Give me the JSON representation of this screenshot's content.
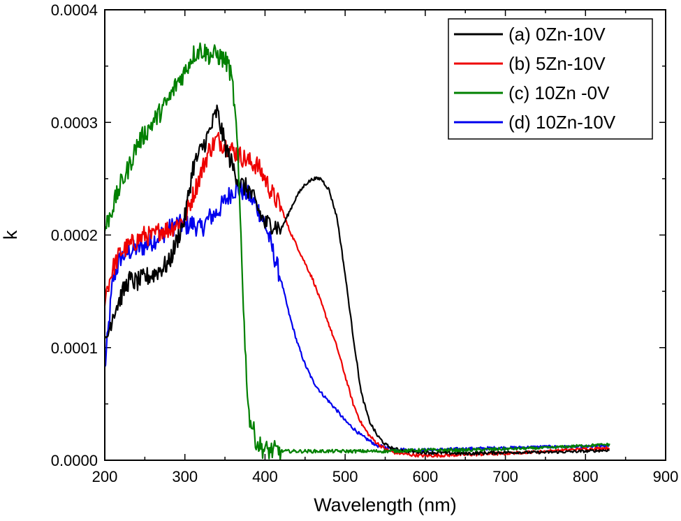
{
  "chart_data": {
    "type": "line",
    "title": "",
    "xlabel": "Wavelength (nm)",
    "ylabel": "k",
    "xlim": [
      200,
      900
    ],
    "ylim": [
      0,
      0.0004
    ],
    "xticks": [
      "200",
      "300",
      "400",
      "500",
      "600",
      "700",
      "800",
      "900"
    ],
    "yticks": [
      "0.0000",
      "0.0001",
      "0.0002",
      "0.0003",
      "0.0004"
    ],
    "grid": false,
    "legend_position": "top-right",
    "series": [
      {
        "name": "(a) 0Zn-10V",
        "color": "#000000",
        "x": [
          200,
          210,
          220,
          230,
          240,
          250,
          260,
          270,
          280,
          290,
          300,
          310,
          320,
          330,
          340,
          350,
          360,
          370,
          380,
          390,
          400,
          410,
          420,
          430,
          440,
          450,
          460,
          470,
          480,
          490,
          500,
          510,
          520,
          530,
          540,
          550,
          560,
          580,
          600,
          650,
          700,
          750,
          800,
          830
        ],
        "y": [
          0.0001,
          0.00013,
          0.000145,
          0.00016,
          0.000158,
          0.000162,
          0.000165,
          0.00017,
          0.000175,
          0.000195,
          0.000215,
          0.00026,
          0.000275,
          0.00029,
          0.00031,
          0.00028,
          0.00026,
          0.000245,
          0.00024,
          0.000225,
          0.00021,
          0.00021,
          0.000205,
          0.00022,
          0.000235,
          0.000245,
          0.00025,
          0.00025,
          0.00024,
          0.000215,
          0.000165,
          0.00011,
          6e-05,
          3.5e-05,
          2.2e-05,
          1.4e-05,
          1e-05,
          8e-06,
          7e-06,
          6e-06,
          7e-06,
          7e-06,
          8e-06,
          9e-06
        ]
      },
      {
        "name": "(b) 5Zn-10V",
        "color": "#ee0000",
        "x": [
          200,
          210,
          220,
          230,
          240,
          250,
          260,
          270,
          280,
          290,
          300,
          310,
          320,
          330,
          340,
          350,
          360,
          370,
          380,
          390,
          400,
          410,
          420,
          430,
          440,
          450,
          460,
          470,
          480,
          490,
          500,
          510,
          520,
          530,
          540,
          550,
          560,
          580,
          600,
          650,
          700,
          750,
          800,
          830
        ],
        "y": [
          0.000145,
          0.00017,
          0.000185,
          0.00019,
          0.000195,
          0.0002,
          0.000198,
          0.000205,
          0.000205,
          0.00021,
          0.000215,
          0.000235,
          0.000255,
          0.000275,
          0.000285,
          0.00028,
          0.000275,
          0.00027,
          0.000265,
          0.000262,
          0.00025,
          0.000235,
          0.000225,
          0.000205,
          0.00019,
          0.000175,
          0.00016,
          0.00014,
          0.00012,
          0.0001,
          7.5e-05,
          5e-05,
          3.3e-05,
          2.2e-05,
          1.5e-05,
          1e-05,
          7e-06,
          5e-06,
          4e-06,
          5e-06,
          6e-06,
          8e-06,
          1e-05,
          1.1e-05
        ]
      },
      {
        "name": "(c) 10Zn -0V",
        "color": "#008000",
        "x": [
          200,
          210,
          220,
          230,
          240,
          250,
          260,
          270,
          280,
          290,
          300,
          310,
          320,
          330,
          340,
          350,
          355,
          360,
          365,
          370,
          375,
          380,
          390,
          400,
          420,
          450,
          500,
          550,
          600,
          650,
          700,
          750,
          800,
          830
        ],
        "y": [
          0.000205,
          0.000225,
          0.000245,
          0.00026,
          0.00028,
          0.00029,
          0.0003,
          0.00031,
          0.00032,
          0.000335,
          0.000345,
          0.00036,
          0.000365,
          0.00036,
          0.00036,
          0.000355,
          0.00035,
          0.00033,
          0.000285,
          0.0002,
          0.0001,
          4e-05,
          1.5e-05,
          9e-06,
          8e-06,
          8e-06,
          8e-06,
          8e-06,
          9e-06,
          9e-06,
          1e-05,
          1.1e-05,
          1.3e-05,
          1.4e-05
        ]
      },
      {
        "name": "(d) 10Zn-10V",
        "color": "#0000ee",
        "x": [
          200,
          210,
          220,
          230,
          240,
          250,
          260,
          270,
          280,
          290,
          300,
          310,
          320,
          330,
          340,
          350,
          360,
          370,
          380,
          390,
          400,
          410,
          420,
          430,
          440,
          450,
          460,
          470,
          480,
          490,
          500,
          520,
          540,
          560,
          580,
          600,
          650,
          700,
          750,
          800,
          830
        ],
        "y": [
          8e-05,
          0.00016,
          0.00018,
          0.000185,
          0.000188,
          0.00019,
          0.000195,
          0.0002,
          0.000205,
          0.00021,
          0.000208,
          0.00021,
          0.000205,
          0.000215,
          0.00022,
          0.00023,
          0.00024,
          0.00024,
          0.000235,
          0.000225,
          0.00021,
          0.000185,
          0.00016,
          0.00013,
          0.000105,
          8.5e-05,
          7e-05,
          6e-05,
          5.2e-05,
          4.4e-05,
          3.5e-05,
          2.2e-05,
          1.3e-05,
          1e-05,
          9e-06,
          9e-06,
          1e-05,
          1.1e-05,
          1.2e-05,
          1.2e-05,
          1.3e-05
        ]
      }
    ]
  }
}
